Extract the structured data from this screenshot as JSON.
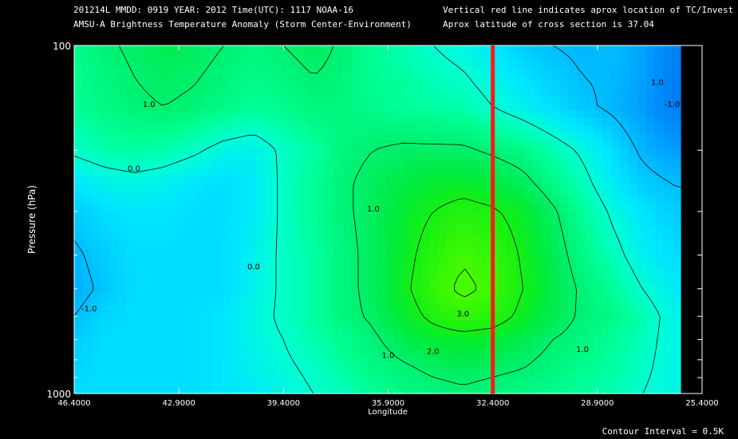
{
  "header": {
    "line1": "201214L  MMDD: 0919 YEAR: 2012 Time(UTC): 1117 NOAA-16",
    "line2": "AMSU-A Brightness Temperature Anomaly (Storm Center-Environment)",
    "line3": "Vertical red line indicates aprox location of TC/Invest",
    "line4": "Aprox latitude of cross section is 37.04"
  },
  "footer": {
    "contour_interval": "Contour Interval = 0.5K"
  },
  "chart_data": {
    "type": "heatmap",
    "title": "AMSU-A Brightness Temperature Anomaly (Storm Center-Environment)",
    "xlabel": "Longitude",
    "ylabel": "Pressure (hPa)",
    "xlim": [
      46.4,
      25.4
    ],
    "ylim": [
      1000,
      100
    ],
    "y_scale": "log",
    "x_ticks": [
      "46.4000",
      "42.9000",
      "39.4000",
      "35.9000",
      "32.4000",
      "28.9000",
      "25.4000"
    ],
    "x_tick_values": [
      46.4,
      42.9,
      39.4,
      35.9,
      32.4,
      28.9,
      25.4
    ],
    "y_ticks": [
      "100",
      "1000"
    ],
    "y_tick_values": [
      100,
      1000
    ],
    "y_minor_ticks": [
      200,
      300,
      400,
      500,
      600,
      700,
      800,
      900
    ],
    "contour_interval": 0.5,
    "storm_longitude": 32.4,
    "storm_line_color": "#ff1a1a",
    "grid_longitudes": [
      46.4,
      45.4,
      44.4,
      43.4,
      42.4,
      41.4,
      40.4,
      39.4,
      38.4,
      37.4,
      36.4,
      35.4,
      34.4,
      33.4,
      32.4,
      31.4,
      30.4,
      29.4,
      28.4,
      27.4,
      26.4,
      25.4
    ],
    "grid_pressures": [
      100,
      150,
      200,
      250,
      300,
      400,
      500,
      600,
      700,
      850,
      1000
    ],
    "anomaly": [
      [
        0.6,
        0.9,
        1.1,
        1.3,
        1.2,
        1.0,
        0.8,
        1.0,
        1.2,
        0.9,
        0.5,
        0.3,
        0.0,
        -0.2,
        -0.5,
        -0.8,
        -1.0,
        -1.1,
        -1.0,
        -1.3,
        -1.8,
        -2.3
      ],
      [
        0.5,
        0.7,
        0.9,
        1.0,
        0.9,
        0.7,
        0.5,
        0.6,
        0.8,
        0.8,
        0.6,
        0.5,
        0.4,
        0.3,
        0.0,
        -0.3,
        -0.6,
        -0.9,
        -1.1,
        -1.4,
        -1.9,
        -2.2
      ],
      [
        0.1,
        0.3,
        0.4,
        0.3,
        0.1,
        -0.2,
        -0.3,
        0.1,
        0.4,
        0.8,
        1.0,
        1.1,
        1.1,
        1.1,
        0.9,
        0.7,
        0.3,
        -0.1,
        -0.6,
        -1.1,
        -1.4,
        -1.5
      ],
      [
        -0.5,
        -0.3,
        -0.2,
        -0.3,
        -0.5,
        -0.6,
        -0.4,
        0.1,
        0.5,
        0.9,
        1.2,
        1.4,
        1.6,
        1.7,
        1.5,
        1.2,
        0.7,
        0.2,
        -0.4,
        -0.8,
        -1.0,
        -1.1
      ],
      [
        -0.8,
        -0.6,
        -0.5,
        -0.5,
        -0.6,
        -0.6,
        -0.4,
        0.1,
        0.5,
        0.9,
        1.2,
        1.6,
        2.0,
        2.3,
        2.1,
        1.7,
        1.1,
        0.5,
        -0.1,
        -0.5,
        -0.8,
        -0.8
      ],
      [
        -1.1,
        -0.8,
        -0.6,
        -0.6,
        -0.6,
        -0.6,
        -0.3,
        0.1,
        0.4,
        0.8,
        1.2,
        1.7,
        2.4,
        2.9,
        2.6,
        1.9,
        1.3,
        0.7,
        0.2,
        -0.3,
        -0.6,
        -0.7
      ],
      [
        -1.2,
        -0.9,
        -0.6,
        -0.6,
        -0.6,
        -0.6,
        -0.3,
        0.1,
        0.4,
        0.8,
        1.2,
        1.8,
        2.6,
        3.2,
        2.8,
        2.0,
        1.4,
        0.9,
        0.5,
        0.0,
        -0.4,
        -0.5
      ],
      [
        -1.0,
        -0.7,
        -0.6,
        -0.6,
        -0.6,
        -0.5,
        -0.2,
        0.1,
        0.4,
        0.8,
        1.1,
        1.6,
        2.2,
        2.6,
        2.4,
        1.8,
        1.3,
        0.9,
        0.7,
        0.3,
        -0.2,
        -0.4
      ],
      [
        -0.8,
        -0.6,
        -0.6,
        -0.6,
        -0.6,
        -0.5,
        -0.2,
        0.0,
        0.3,
        0.6,
        0.9,
        1.3,
        1.6,
        1.7,
        1.6,
        1.3,
        1.0,
        0.8,
        0.5,
        0.2,
        -0.2,
        -0.4
      ],
      [
        -0.7,
        -0.6,
        -0.6,
        -0.6,
        -0.6,
        -0.5,
        -0.3,
        -0.1,
        0.1,
        0.4,
        0.7,
        0.9,
        1.1,
        1.2,
        1.1,
        1.0,
        0.8,
        0.6,
        0.4,
        0.1,
        -0.2,
        -0.4
      ],
      [
        -0.6,
        -0.6,
        -0.6,
        -0.6,
        -0.6,
        -0.5,
        -0.4,
        -0.2,
        0.0,
        0.2,
        0.5,
        0.7,
        0.8,
        0.9,
        0.8,
        0.7,
        0.6,
        0.4,
        0.3,
        0.0,
        -0.2,
        -0.4
      ]
    ],
    "contour_labels": [
      "1.0",
      "0.0",
      "-1.0",
      "0.0",
      "1.0",
      "0.0",
      "1.0",
      "-1.0",
      "1.0",
      "2.0",
      "3.0",
      "1.0"
    ]
  }
}
